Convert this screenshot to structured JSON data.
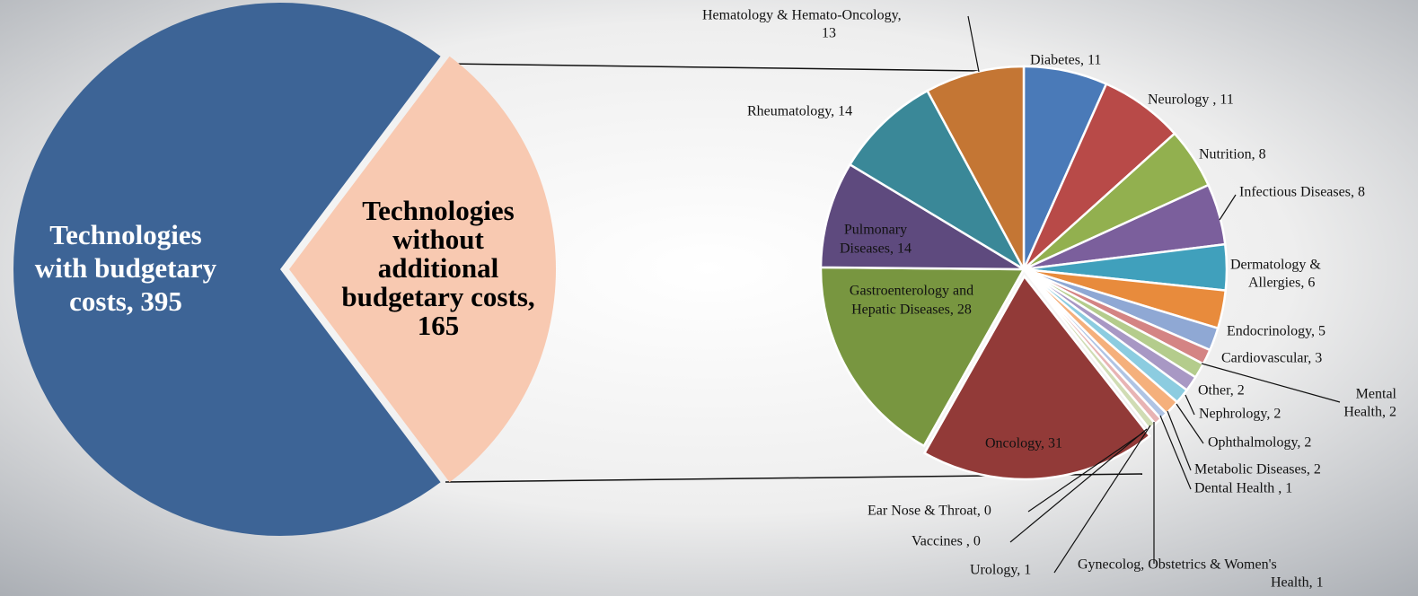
{
  "chart_data": [
    {
      "type": "pie",
      "categories": [
        "Technologies with budgetary costs",
        "Technologies without additional budgetary costs"
      ],
      "values": [
        395,
        165
      ],
      "labels": [
        [
          "Technologies",
          "with budgetary",
          "costs, 395"
        ],
        [
          "Technologies",
          "without",
          "additional",
          "budgetary costs,",
          "165"
        ]
      ],
      "colors": [
        "#3d6496",
        "#f8c9b1"
      ]
    },
    {
      "type": "pie",
      "categories": [
        "Diabetes",
        "Neurology",
        "Nutrition",
        "Infectious Diseases",
        "Dermatology & Allergies",
        "Endocrinology",
        "Cardiovascular",
        "Mental Health",
        "Other",
        "Nephrology",
        "Ophthalmology",
        "Metabolic Diseases",
        "Dental Health",
        "Gynecolog, Obstetrics & Women's Health",
        "Urology",
        "Vaccines",
        "Ear Nose & Throat",
        "Oncology",
        "Gastroenterology and Hepatic Diseases",
        "Pulmonary Diseases",
        "Rheumatology",
        "Hematology & Hemato-Oncology"
      ],
      "values": [
        11,
        11,
        8,
        8,
        6,
        5,
        3,
        2,
        2,
        2,
        2,
        2,
        1,
        1,
        1,
        0,
        0,
        31,
        28,
        14,
        14,
        13
      ],
      "labels": [
        [
          "Diabetes, 11"
        ],
        [
          "Neurology , 11"
        ],
        [
          "Nutrition, 8"
        ],
        [
          "Infectious Diseases,  8"
        ],
        [
          "Dermatology &",
          "Allergies, 6"
        ],
        [
          "Endocrinology, 5"
        ],
        [
          "Cardiovascular, 3"
        ],
        [
          "Mental",
          "Health, 2"
        ],
        [
          "Other, 2"
        ],
        [
          "Nephrology, 2"
        ],
        [
          "Ophthalmology, 2"
        ],
        [
          "Metabolic Diseases, 2"
        ],
        [
          "Dental Health , 1"
        ],
        [
          "Gynecolog,  Obstetrics & Women's",
          "Health, 1"
        ],
        [
          "Urology, 1"
        ],
        [
          "Vaccines , 0"
        ],
        [
          "Ear Nose & Throat, 0"
        ],
        [
          "Oncology, 31"
        ],
        [
          "Gastroenterology and",
          "Hepatic Diseases, 28"
        ],
        [
          "Pulmonary",
          "Diseases, 14"
        ],
        [
          "Rheumatology, 14"
        ],
        [
          "Hematology & Hemato-Oncology,",
          "13"
        ]
      ],
      "colors": [
        "#4a7ab8",
        "#b84a48",
        "#92b04f",
        "#7b5f9c",
        "#40a0bc",
        "#e88b3c",
        "#8fa8d4",
        "#d48484",
        "#b4cc8c",
        "#a898c4",
        "#8ccce0",
        "#f5b07c",
        "#b0c4e4",
        "#e8b4b4",
        "#d0dcb4",
        "#c8bcd8",
        "#bce0ec",
        "#923a38",
        "#789640",
        "#5e4a7e",
        "#3a8898",
        "#c47634"
      ]
    }
  ]
}
